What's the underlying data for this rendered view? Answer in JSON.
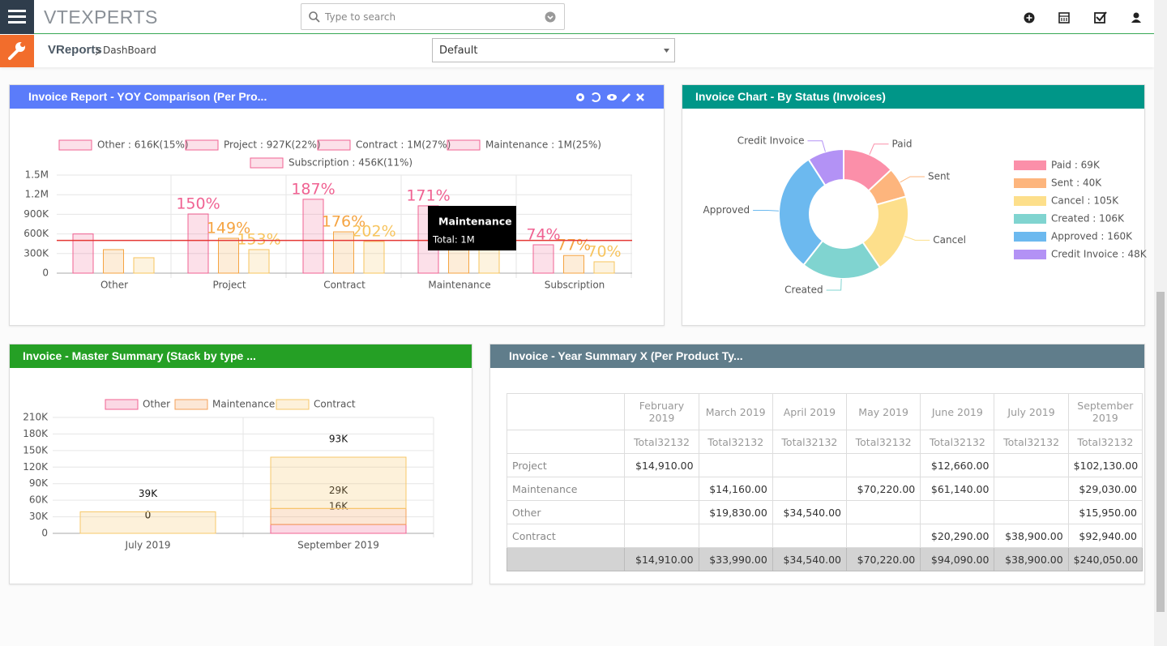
{
  "header": {
    "logo": "VTEXPERTS",
    "search_placeholder": "Type to search"
  },
  "breadcrumb": {
    "module": "VReports",
    "page": "DashBoard"
  },
  "dashboard_select": "Default",
  "chart_data": [
    {
      "type": "bar",
      "title": "Invoice Report - YOY Comparison (Per Pro...",
      "legend": [
        "Other : 616K(15%)",
        "Project : 927K(22%)",
        "Contract : 1M(27%)",
        "Maintenance : 1M(25%)",
        "Subscription : 456K(11%)"
      ],
      "legend_color": "#f06292",
      "categories": [
        "Other",
        "Project",
        "Contract",
        "Maintenance",
        "Subscription"
      ],
      "series": [
        {
          "color": "#f06292",
          "values": [
            600000,
            905000,
            1130000,
            1030000,
            434000
          ],
          "growth_labels": [
            null,
            "150%",
            "187%",
            "171%",
            "74%"
          ]
        },
        {
          "color": "#f5a442",
          "values": [
            360000,
            533000,
            632000,
            600000,
            270000
          ],
          "growth_labels": [
            null,
            "149%",
            "176%",
            null,
            "77%"
          ]
        },
        {
          "color": "#f7c45e",
          "values": [
            236000,
            360000,
            484000,
            400000,
            174000
          ],
          "growth_labels": [
            null,
            "153%",
            "202%",
            null,
            "70%"
          ]
        }
      ],
      "ylim": [
        0,
        1500000
      ],
      "yticks": [
        0,
        {
          "value": 300000,
          "label": "300K"
        },
        {
          "value": 600000,
          "label": "600K"
        },
        {
          "value": 900000,
          "label": "900K"
        },
        {
          "value": 1200000,
          "label": "1.2M"
        },
        {
          "value": 1500000,
          "label": "1.5M"
        }
      ],
      "grid": true,
      "reference_line": 500000,
      "reference_color": "#e53935",
      "tooltip": {
        "title": "Maintenance",
        "text": "Total: 1M"
      }
    },
    {
      "type": "pie",
      "title": "Invoice Chart - By Status (Invoices)",
      "donut": true,
      "categories": [
        "Paid",
        "Sent",
        "Cancel",
        "Created",
        "Approved",
        "Credit Invoice"
      ],
      "values": [
        69000,
        40000,
        105000,
        106000,
        160000,
        48000
      ],
      "legend": [
        "Paid : 69K",
        "Sent : 40K",
        "Cancel : 105K",
        "Created : 106K",
        "Approved : 160K",
        "Credit Invoice : 48K"
      ],
      "colors": [
        "#fb8fa9",
        "#fdb57d",
        "#fddf8b",
        "#80d4d0",
        "#6cb9ef",
        "#b392f5"
      ]
    },
    {
      "type": "stacked_bar",
      "title": "Invoice - Master Summary (Stack by type ...",
      "categories": [
        "July 2019",
        "September 2019"
      ],
      "series": [
        {
          "name": "Other",
          "color": "#f06292",
          "values": [
            0,
            16000
          ],
          "value_labels": [
            "0",
            "16K"
          ]
        },
        {
          "name": "Maintenance",
          "color": "#f5a05a",
          "values": [
            0,
            29000
          ],
          "value_labels": [
            "0",
            "29K"
          ]
        },
        {
          "name": "Contract",
          "color": "#f7c86a",
          "values": [
            39000,
            93000
          ],
          "value_labels": [
            "39K",
            "93K"
          ]
        }
      ],
      "ylim": [
        0,
        210000
      ],
      "yticks": [
        0,
        {
          "value": 30000,
          "label": "30K"
        },
        {
          "value": 60000,
          "label": "60K"
        },
        {
          "value": 90000,
          "label": "90K"
        },
        {
          "value": 120000,
          "label": "120K"
        },
        {
          "value": 150000,
          "label": "150K"
        },
        {
          "value": 180000,
          "label": "180K"
        },
        {
          "value": 210000,
          "label": "210K"
        }
      ],
      "grid": true
    }
  ],
  "table": {
    "title": "Invoice - Year Summary X (Per Product Ty...",
    "columns": [
      "February 2019",
      "March 2019",
      "April 2019",
      "May 2019",
      "June 2019",
      "July 2019",
      "September 2019"
    ],
    "subheaders": [
      "Total32132",
      "Total32132",
      "Total32132",
      "Total32132",
      "Total32132",
      "Total32132",
      "Total32132"
    ],
    "rows": [
      {
        "label": "Project",
        "cells": [
          "$14,910.00",
          null,
          null,
          null,
          "$12,660.00",
          null,
          "$102,130.00"
        ]
      },
      {
        "label": "Maintenance",
        "cells": [
          null,
          "$14,160.00",
          null,
          "$70,220.00",
          "$61,140.00",
          null,
          "$29,030.00"
        ]
      },
      {
        "label": "Other",
        "cells": [
          null,
          "$19,830.00",
          "$34,540.00",
          null,
          null,
          null,
          "$15,950.00"
        ]
      },
      {
        "label": "Contract",
        "cells": [
          null,
          null,
          null,
          null,
          "$20,290.00",
          "$38,900.00",
          "$92,940.00"
        ]
      }
    ],
    "totals": [
      "$14,910.00",
      "$33,990.00",
      "$34,540.00",
      "$70,220.00",
      "$94,090.00",
      "$38,900.00",
      "$240,050.00"
    ]
  }
}
